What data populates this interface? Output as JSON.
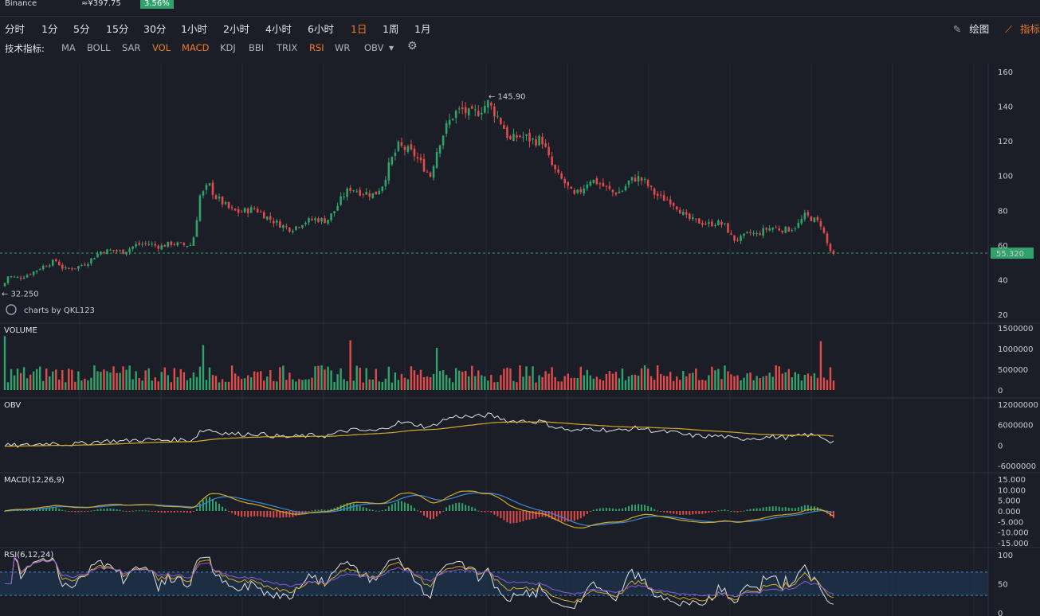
{
  "header": {
    "exchange": "Binance",
    "price_cny": "≈¥397.75",
    "change": "3.56%"
  },
  "intervals": [
    "分时",
    "1分",
    "5分",
    "15分",
    "30分",
    "1小时",
    "2小时",
    "4小时",
    "6小时",
    "1日",
    "1周",
    "1月"
  ],
  "active_interval": "1日",
  "tools": {
    "draw": "绘图",
    "indicator": "指标"
  },
  "indicators": {
    "label": "技术指标:",
    "items": [
      "MA",
      "BOLL",
      "SAR",
      "VOL",
      "MACD",
      "KDJ",
      "BBI",
      "TRIX",
      "RSI",
      "WR",
      "OBV"
    ],
    "active": [
      "VOL",
      "MACD",
      "RSI"
    ]
  },
  "colors": {
    "up": "#2fa36b",
    "down": "#e04b4b",
    "line1": "#e0e2e6",
    "line2": "#d4a92a",
    "line3": "#3a8ad6",
    "bg": "#1b1e26"
  },
  "chart_data": [
    {
      "type": "candlestick",
      "yticks": [
        20,
        40,
        60,
        80,
        100,
        120,
        140,
        160
      ],
      "ylim": [
        20,
        160
      ],
      "current_price": "55.320",
      "current_value": 55.32,
      "high_label": "145.90",
      "high_value": 145.9,
      "low_label": "32.250",
      "low_value": 32.25,
      "watermark": "charts by QKL123",
      "close_path": [
        [
          0,
          32.3
        ],
        [
          10,
          42
        ],
        [
          25,
          41
        ],
        [
          40,
          44
        ],
        [
          55,
          48
        ],
        [
          70,
          51
        ],
        [
          80,
          46
        ],
        [
          95,
          47
        ],
        [
          110,
          50
        ],
        [
          125,
          56
        ],
        [
          140,
          57
        ],
        [
          155,
          56
        ],
        [
          170,
          60
        ],
        [
          185,
          61
        ],
        [
          200,
          59
        ],
        [
          215,
          61
        ],
        [
          230,
          60
        ],
        [
          240,
          60
        ],
        [
          245,
          68
        ],
        [
          250,
          88
        ],
        [
          255,
          90
        ],
        [
          262,
          95
        ],
        [
          270,
          88
        ],
        [
          280,
          84
        ],
        [
          290,
          80
        ],
        [
          300,
          79
        ],
        [
          320,
          81
        ],
        [
          335,
          76
        ],
        [
          350,
          72
        ],
        [
          365,
          69
        ],
        [
          380,
          73
        ],
        [
          395,
          75
        ],
        [
          410,
          74
        ],
        [
          420,
          80
        ],
        [
          430,
          88
        ],
        [
          440,
          93
        ],
        [
          450,
          91
        ],
        [
          460,
          90
        ],
        [
          470,
          89
        ],
        [
          480,
          95
        ],
        [
          490,
          108
        ],
        [
          500,
          117
        ],
        [
          510,
          115
        ],
        [
          520,
          112
        ],
        [
          530,
          106
        ],
        [
          540,
          100
        ],
        [
          550,
          118
        ],
        [
          560,
          128
        ],
        [
          570,
          136
        ],
        [
          580,
          138
        ],
        [
          590,
          135
        ],
        [
          600,
          137
        ],
        [
          612,
          142
        ],
        [
          620,
          137
        ],
        [
          630,
          130
        ],
        [
          640,
          120
        ],
        [
          650,
          123
        ],
        [
          660,
          122
        ],
        [
          670,
          120
        ],
        [
          680,
          121
        ],
        [
          690,
          108
        ],
        [
          700,
          100
        ],
        [
          710,
          95
        ],
        [
          720,
          88
        ],
        [
          730,
          92
        ],
        [
          740,
          98
        ],
        [
          750,
          96
        ],
        [
          760,
          93
        ],
        [
          770,
          90
        ],
        [
          780,
          91
        ],
        [
          790,
          97
        ],
        [
          800,
          99
        ],
        [
          810,
          96
        ],
        [
          820,
          90
        ],
        [
          830,
          87
        ],
        [
          840,
          86
        ],
        [
          850,
          82
        ],
        [
          860,
          76
        ],
        [
          870,
          74
        ],
        [
          880,
          73
        ],
        [
          890,
          72
        ],
        [
          900,
          73
        ],
        [
          910,
          71
        ],
        [
          920,
          63
        ],
        [
          930,
          64
        ],
        [
          940,
          67
        ],
        [
          950,
          66
        ],
        [
          960,
          69
        ],
        [
          970,
          70
        ],
        [
          980,
          69
        ],
        [
          990,
          69
        ],
        [
          1000,
          71
        ],
        [
          1010,
          77
        ],
        [
          1020,
          75
        ],
        [
          1030,
          72
        ],
        [
          1040,
          58
        ],
        [
          1047,
          53
        ]
      ]
    },
    {
      "type": "bar",
      "title": "VOLUME",
      "yticks": [
        0,
        500000,
        1000000,
        1500000
      ],
      "ytick_labels": [
        "0",
        "500000",
        "1000000",
        "1500000"
      ],
      "ylim": [
        0,
        1500000
      ]
    },
    {
      "type": "line",
      "title": "OBV",
      "yticks": [
        -6000000,
        0,
        6000000,
        12000000
      ],
      "ytick_labels": [
        "-6000000",
        "0",
        "6000000",
        "12000000"
      ],
      "ylim": [
        -6000000,
        12000000
      ]
    },
    {
      "type": "line",
      "title": "MACD(12,26,9)",
      "yticks": [
        -15,
        -10,
        -5,
        0,
        5,
        10,
        15
      ],
      "ytick_labels": [
        "-15.000",
        "-10.000",
        "-5.000",
        "0.000",
        "5.000",
        "10.000",
        "15.000"
      ],
      "ylim": [
        -15,
        15
      ]
    },
    {
      "type": "line",
      "title": "RSI(6,12,24)",
      "yticks": [
        0,
        50,
        100
      ],
      "ytick_labels": [
        "0",
        "50",
        "100"
      ],
      "ylim": [
        0,
        100
      ]
    }
  ]
}
